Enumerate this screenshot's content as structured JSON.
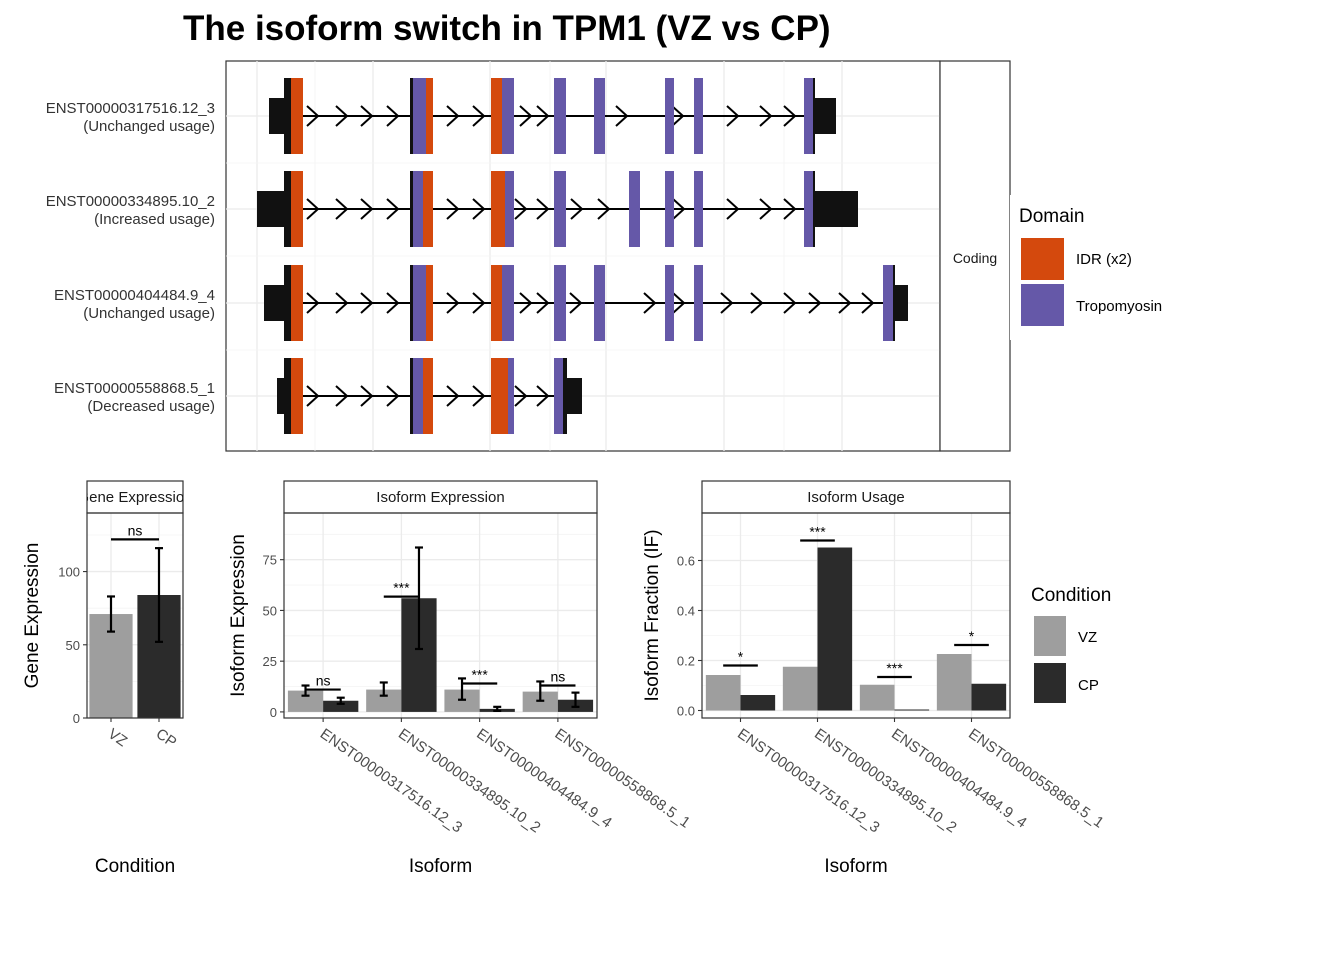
{
  "chart_data": [
    {
      "type": "transcript-structure",
      "title": "The isoform switch in TPM1 (VZ vs CP)",
      "facet_label": "Coding",
      "legend": {
        "title": "Domain",
        "entries": [
          {
            "name": "IDR (x2)",
            "color": "#D4490D"
          },
          {
            "name": "Tropomyosin",
            "color": "#6558A8"
          }
        ]
      },
      "transcripts": [
        {
          "id": "ENST00000317516.12_3",
          "usage": "(Unchanged usage)"
        },
        {
          "id": "ENST00000334895.10_2",
          "usage": "(Increased usage)"
        },
        {
          "id": "ENST00000404484.9_4",
          "usage": "(Unchanged usage)"
        },
        {
          "id": "ENST00000558868.5_1",
          "usage": "(Decreased usage)"
        }
      ]
    },
    {
      "type": "bar",
      "strip": "Gene Expression",
      "xlabel": "Condition",
      "ylabel": "Gene Expression",
      "categories": [
        "VZ",
        "CP"
      ],
      "values": [
        71,
        84
      ],
      "errors": [
        [
          59,
          83
        ],
        [
          52,
          116
        ]
      ],
      "ylim": [
        0,
        140
      ],
      "yticks": [
        0,
        50,
        100
      ],
      "significance": [
        {
          "label": "ns",
          "y": 122
        }
      ]
    },
    {
      "type": "bar",
      "strip": "Isoform Expression",
      "xlabel": "Isoform",
      "ylabel": "Isoform Expression",
      "categories": [
        "ENST00000317516.12_3",
        "ENST00000334895.10_2",
        "ENST00000404484.9_4",
        "ENST00000558868.5_1"
      ],
      "series": [
        {
          "name": "VZ",
          "values": [
            10.5,
            11,
            11,
            10
          ],
          "errors": [
            [
              8,
              13
            ],
            [
              8,
              14.5
            ],
            [
              6,
              16.5
            ],
            [
              5.5,
              15
            ]
          ]
        },
        {
          "name": "CP",
          "values": [
            5.5,
            56,
            1.5,
            6
          ],
          "errors": [
            [
              4,
              7
            ],
            [
              31,
              81
            ],
            [
              0.5,
              2.5
            ],
            [
              2.5,
              9.5
            ]
          ]
        }
      ],
      "ylim": [
        -3,
        98
      ],
      "yticks": [
        0,
        25,
        50,
        75
      ],
      "significance": [
        "ns",
        "***",
        "***",
        "ns"
      ],
      "sig_y": [
        11,
        56.8,
        14,
        13
      ]
    },
    {
      "type": "bar",
      "strip": "Isoform Usage",
      "xlabel": "Isoform",
      "ylabel": "Isoform Fraction (IF)",
      "categories": [
        "ENST00000317516.12_3",
        "ENST00000334895.10_2",
        "ENST00000404484.9_4",
        "ENST00000558868.5_1"
      ],
      "series": [
        {
          "name": "VZ",
          "values": [
            0.142,
            0.175,
            0.103,
            0.226
          ]
        },
        {
          "name": "CP",
          "values": [
            0.062,
            0.652,
            0.004,
            0.107
          ]
        }
      ],
      "ylim": [
        -0.03,
        0.79
      ],
      "yticks": [
        0.0,
        0.2,
        0.4,
        0.6
      ],
      "ytick_labels": [
        "0.0",
        "0.2",
        "0.4",
        "0.6"
      ],
      "significance": [
        "*",
        "***",
        "***",
        "*"
      ],
      "sig_y": [
        0.18,
        0.68,
        0.134,
        0.262
      ],
      "legend": {
        "title": "Condition",
        "entries": [
          {
            "name": "VZ",
            "color": "#9E9E9E"
          },
          {
            "name": "CP",
            "color": "#2B2B2B"
          }
        ]
      }
    }
  ]
}
